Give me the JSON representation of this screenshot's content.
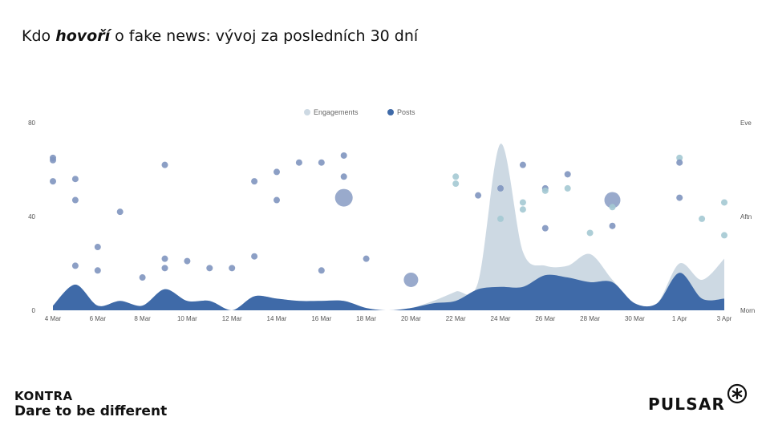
{
  "slide": {
    "title_pre": "Kdo ",
    "title_emph": "hovoří",
    "title_post": " o fake news: vývoj za posledních 30 dní"
  },
  "branding": {
    "kontra_name": "KONTRA",
    "kontra_tagline": "Dare to be different",
    "pulsar_name": "PULSAR",
    "pulsar_logo_icon": "asterisk-circle-icon"
  },
  "colors": {
    "engagements": "#cdd9e3",
    "posts": "#3f6aa8",
    "dot_light": "#a4c9d3",
    "dot_dark": "#7f95bf"
  },
  "chart_data": {
    "type": "area",
    "legend": [
      "Engagements",
      "Posts"
    ],
    "legend_position": "top-center",
    "x_ticks": [
      "4 Mar",
      "6 Mar",
      "8 Mar",
      "10 Mar",
      "12 Mar",
      "14 Mar",
      "16 Mar",
      "18 Mar",
      "20 Mar",
      "22 Mar",
      "24 Mar",
      "26 Mar",
      "28 Mar",
      "30 Mar",
      "1 Apr",
      "3 Apr"
    ],
    "y_left_ticks": [
      "0",
      "40",
      "80"
    ],
    "y_right_ticks": [
      "Morn",
      "Aftn",
      "Eve"
    ],
    "ylim": [
      0,
      80
    ],
    "grid": false,
    "x_days": [
      0,
      1,
      2,
      3,
      4,
      5,
      6,
      7,
      8,
      9,
      10,
      11,
      12,
      13,
      14,
      15,
      16,
      17,
      18,
      19,
      20,
      21,
      22,
      23,
      24,
      25,
      26,
      27,
      28,
      29,
      30
    ],
    "series": [
      {
        "name": "Engagements",
        "values": [
          2,
          11,
          2,
          4,
          2,
          9,
          4,
          4,
          0,
          6,
          5,
          4,
          4,
          4,
          1,
          0,
          1,
          4,
          8,
          12,
          71,
          25,
          19,
          19,
          24,
          13,
          3,
          3,
          20,
          13,
          22
        ]
      },
      {
        "name": "Posts",
        "values": [
          2,
          11,
          2,
          4,
          2,
          9,
          4,
          4,
          0,
          6,
          5,
          4,
          4,
          4,
          1,
          0,
          1,
          3,
          4,
          9,
          10,
          10,
          15,
          14,
          12,
          12,
          3,
          3,
          16,
          5,
          5
        ]
      }
    ],
    "scatter": [
      {
        "day": 0,
        "y": 65,
        "s": 4,
        "c": "dark"
      },
      {
        "day": 0,
        "y": 64,
        "s": 4,
        "c": "dark"
      },
      {
        "day": 0,
        "y": 55,
        "s": 4,
        "c": "dark"
      },
      {
        "day": 1,
        "y": 56,
        "s": 4,
        "c": "dark"
      },
      {
        "day": 1,
        "y": 47,
        "s": 4,
        "c": "dark"
      },
      {
        "day": 1,
        "y": 19,
        "s": 4,
        "c": "dark"
      },
      {
        "day": 2,
        "y": 27,
        "s": 4,
        "c": "dark"
      },
      {
        "day": 2,
        "y": 17,
        "s": 4,
        "c": "dark"
      },
      {
        "day": 3,
        "y": 42,
        "s": 4,
        "c": "dark"
      },
      {
        "day": 4,
        "y": 14,
        "s": 4,
        "c": "dark"
      },
      {
        "day": 5,
        "y": 62,
        "s": 4,
        "c": "dark"
      },
      {
        "day": 5,
        "y": 22,
        "s": 4,
        "c": "dark"
      },
      {
        "day": 5,
        "y": 18,
        "s": 4,
        "c": "dark"
      },
      {
        "day": 6,
        "y": 21,
        "s": 4,
        "c": "dark"
      },
      {
        "day": 7,
        "y": 18,
        "s": 4,
        "c": "dark"
      },
      {
        "day": 8,
        "y": 18,
        "s": 4,
        "c": "dark"
      },
      {
        "day": 9,
        "y": 55,
        "s": 4,
        "c": "dark"
      },
      {
        "day": 9,
        "y": 23,
        "s": 4,
        "c": "dark"
      },
      {
        "day": 10,
        "y": 59,
        "s": 4,
        "c": "dark"
      },
      {
        "day": 10,
        "y": 47,
        "s": 4,
        "c": "dark"
      },
      {
        "day": 11,
        "y": 63,
        "s": 4,
        "c": "dark"
      },
      {
        "day": 12,
        "y": 63,
        "s": 4,
        "c": "dark"
      },
      {
        "day": 12,
        "y": 17,
        "s": 4,
        "c": "dark"
      },
      {
        "day": 13,
        "y": 66,
        "s": 4,
        "c": "dark"
      },
      {
        "day": 13,
        "y": 57,
        "s": 4,
        "c": "dark"
      },
      {
        "day": 13,
        "y": 48,
        "s": 11,
        "c": "dark"
      },
      {
        "day": 14,
        "y": 22,
        "s": 4,
        "c": "dark"
      },
      {
        "day": 16,
        "y": 13,
        "s": 9,
        "c": "dark"
      },
      {
        "day": 18,
        "y": 57,
        "s": 4,
        "c": "light"
      },
      {
        "day": 18,
        "y": 54,
        "s": 4,
        "c": "light"
      },
      {
        "day": 19,
        "y": 49,
        "s": 4,
        "c": "dark"
      },
      {
        "day": 20,
        "y": 52,
        "s": 4,
        "c": "dark"
      },
      {
        "day": 20,
        "y": 39,
        "s": 4,
        "c": "light"
      },
      {
        "day": 21,
        "y": 62,
        "s": 4,
        "c": "dark"
      },
      {
        "day": 21,
        "y": 46,
        "s": 4,
        "c": "light"
      },
      {
        "day": 21,
        "y": 43,
        "s": 4,
        "c": "light"
      },
      {
        "day": 22,
        "y": 52,
        "s": 4,
        "c": "dark"
      },
      {
        "day": 22,
        "y": 51,
        "s": 4,
        "c": "light"
      },
      {
        "day": 22,
        "y": 35,
        "s": 4,
        "c": "dark"
      },
      {
        "day": 23,
        "y": 58,
        "s": 4,
        "c": "dark"
      },
      {
        "day": 23,
        "y": 52,
        "s": 4,
        "c": "light"
      },
      {
        "day": 24,
        "y": 33,
        "s": 4,
        "c": "light"
      },
      {
        "day": 25,
        "y": 47,
        "s": 10,
        "c": "dark"
      },
      {
        "day": 25,
        "y": 44,
        "s": 4,
        "c": "light"
      },
      {
        "day": 25,
        "y": 36,
        "s": 4,
        "c": "dark"
      },
      {
        "day": 28,
        "y": 65,
        "s": 4,
        "c": "light"
      },
      {
        "day": 28,
        "y": 63,
        "s": 4,
        "c": "dark"
      },
      {
        "day": 28,
        "y": 48,
        "s": 4,
        "c": "dark"
      },
      {
        "day": 29,
        "y": 39,
        "s": 4,
        "c": "light"
      },
      {
        "day": 30,
        "y": 46,
        "s": 4,
        "c": "light"
      },
      {
        "day": 30,
        "y": 32,
        "s": 4,
        "c": "light"
      }
    ]
  }
}
